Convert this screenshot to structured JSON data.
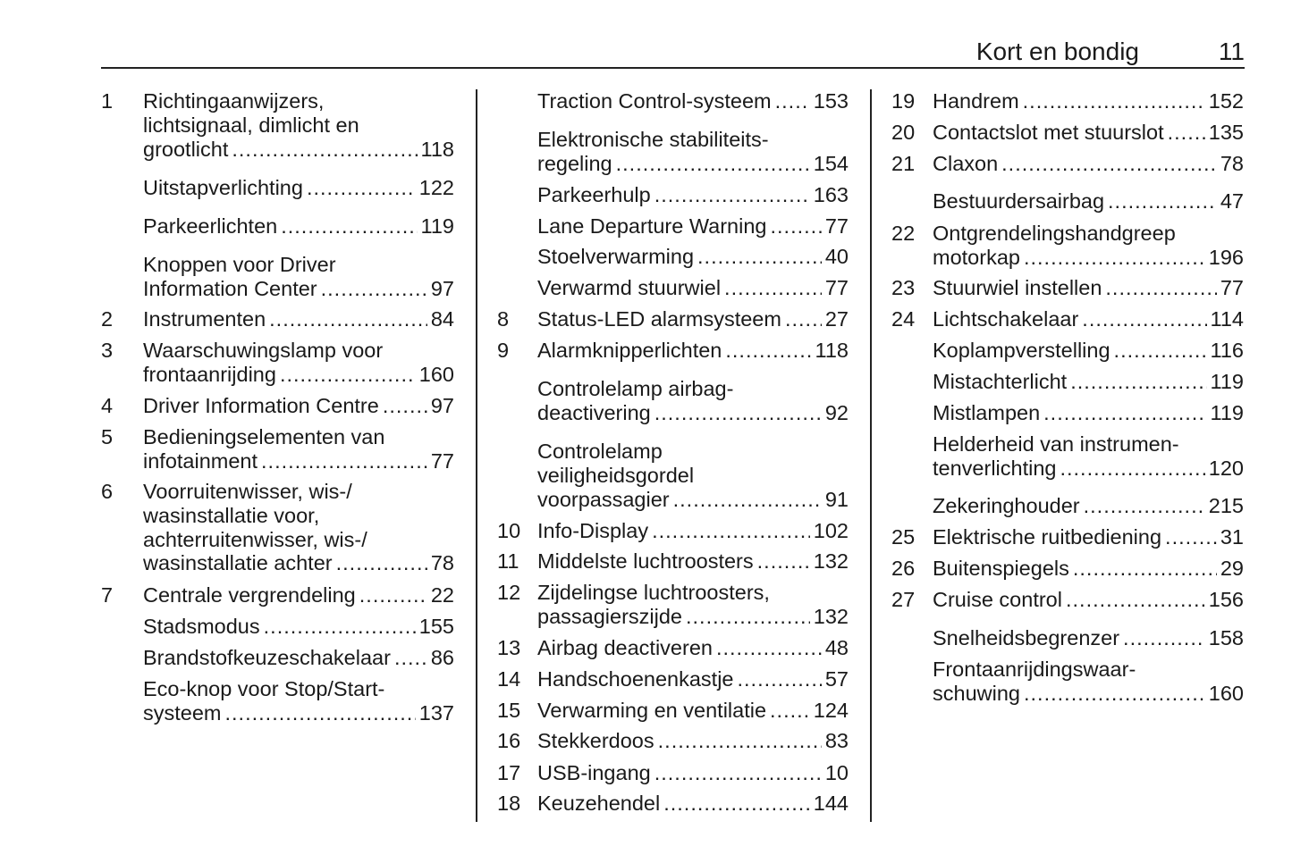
{
  "header": {
    "title": "Kort en bondig",
    "page_number": "11"
  },
  "columns": [
    [
      {
        "num": "1",
        "lines": [
          "Richtingaanwijzers,",
          "lichtsignaal, dimlicht en",
          "grootlicht"
        ],
        "page": "118"
      },
      {
        "num": "",
        "lines": [
          "Uitstapverlichting"
        ],
        "page": "122"
      },
      {
        "num": "",
        "lines": [
          "Parkeerlichten"
        ],
        "page": "119"
      },
      {
        "num": "",
        "lines": [
          "Knoppen voor Driver",
          "Information Center"
        ],
        "page": "97"
      },
      {
        "num": "2",
        "lines": [
          "Instrumenten"
        ],
        "page": "84"
      },
      {
        "num": "3",
        "lines": [
          "Waarschuwingslamp voor",
          "frontaanrijding"
        ],
        "page": "160"
      },
      {
        "num": "4",
        "lines": [
          "Driver Information Centre"
        ],
        "page": "97"
      },
      {
        "num": "5",
        "lines": [
          "Bedieningselementen van",
          "infotainment"
        ],
        "page": "77"
      },
      {
        "num": "6",
        "lines": [
          "Voorruitenwisser, wis-/",
          "wasinstallatie voor,",
          "achterruitenwisser, wis-/",
          "wasinstallatie achter"
        ],
        "page": "78"
      },
      {
        "num": "7",
        "lines": [
          "Centrale vergrendeling"
        ],
        "page": "22"
      },
      {
        "num": "",
        "lines": [
          "Stadsmodus"
        ],
        "page": "155"
      },
      {
        "num": "",
        "lines": [
          "Brandstofkeuzeschakelaar"
        ],
        "page": "86"
      },
      {
        "num": "",
        "lines": [
          "Eco-knop voor Stop/Start-",
          "systeem"
        ],
        "page": "137"
      }
    ],
    [
      {
        "num": "",
        "lines": [
          "Traction Control-systeem"
        ],
        "page": "153"
      },
      {
        "num": "",
        "lines": [
          "Elektronische stabiliteits-",
          "regeling"
        ],
        "page": "154"
      },
      {
        "num": "",
        "lines": [
          "Parkeerhulp"
        ],
        "page": "163"
      },
      {
        "num": "",
        "lines": [
          "Lane Departure Warning"
        ],
        "page": "77"
      },
      {
        "num": "",
        "lines": [
          "Stoelverwarming"
        ],
        "page": "40"
      },
      {
        "num": "",
        "lines": [
          "Verwarmd stuurwiel"
        ],
        "page": "77"
      },
      {
        "num": "8",
        "lines": [
          "Status-LED alarmsysteem"
        ],
        "page": "27"
      },
      {
        "num": "9",
        "lines": [
          "Alarmknipperlichten"
        ],
        "page": "118"
      },
      {
        "num": "",
        "lines": [
          "Controlelamp airbag-",
          "deactivering"
        ],
        "page": "92"
      },
      {
        "num": "",
        "lines": [
          "Controlelamp",
          "veiligheidsgordel",
          "voorpassagier"
        ],
        "page": "91"
      },
      {
        "num": "10",
        "lines": [
          "Info-Display"
        ],
        "page": "102"
      },
      {
        "num": "11",
        "lines": [
          "Middelste luchtroosters"
        ],
        "page": "132"
      },
      {
        "num": "12",
        "lines": [
          "Zijdelingse luchtroosters,",
          "passagierszijde"
        ],
        "page": "132"
      },
      {
        "num": "13",
        "lines": [
          "Airbag deactiveren"
        ],
        "page": "48"
      },
      {
        "num": "14",
        "lines": [
          "Handschoenenkastje"
        ],
        "page": "57"
      },
      {
        "num": "15",
        "lines": [
          "Verwarming en ventilatie"
        ],
        "page": "124"
      },
      {
        "num": "16",
        "lines": [
          "Stekkerdoos"
        ],
        "page": "83"
      },
      {
        "num": "17",
        "lines": [
          "USB-ingang"
        ],
        "page": "10"
      },
      {
        "num": "18",
        "lines": [
          "Keuzehendel"
        ],
        "page": "144"
      }
    ],
    [
      {
        "num": "19",
        "lines": [
          "Handrem"
        ],
        "page": "152"
      },
      {
        "num": "20",
        "lines": [
          "Contactslot met stuurslot"
        ],
        "page": "135"
      },
      {
        "num": "21",
        "lines": [
          "Claxon"
        ],
        "page": "78"
      },
      {
        "num": "",
        "lines": [
          "Bestuurdersairbag"
        ],
        "page": "47"
      },
      {
        "num": "22",
        "lines": [
          "Ontgrendelingshandgreep",
          "motorkap"
        ],
        "page": "196"
      },
      {
        "num": "23",
        "lines": [
          "Stuurwiel instellen"
        ],
        "page": "77"
      },
      {
        "num": "24",
        "lines": [
          "Lichtschakelaar"
        ],
        "page": "114"
      },
      {
        "num": "",
        "lines": [
          "Koplampverstelling"
        ],
        "page": "116"
      },
      {
        "num": "",
        "lines": [
          "Mistachterlicht"
        ],
        "page": "119"
      },
      {
        "num": "",
        "lines": [
          "Mistlampen"
        ],
        "page": "119"
      },
      {
        "num": "",
        "lines": [
          "Helderheid van instrumen-",
          "tenverlichting"
        ],
        "page": "120"
      },
      {
        "num": "",
        "lines": [
          "Zekeringhouder"
        ],
        "page": "215"
      },
      {
        "num": "25",
        "lines": [
          "Elektrische ruitbediening"
        ],
        "page": "31"
      },
      {
        "num": "26",
        "lines": [
          "Buitenspiegels"
        ],
        "page": "29"
      },
      {
        "num": "27",
        "lines": [
          "Cruise control"
        ],
        "page": "156"
      },
      {
        "num": "",
        "lines": [
          "Snelheidsbegrenzer"
        ],
        "page": "158"
      },
      {
        "num": "",
        "lines": [
          "Frontaanrijdingswaar-",
          "schuwing"
        ],
        "page": "160"
      }
    ]
  ]
}
